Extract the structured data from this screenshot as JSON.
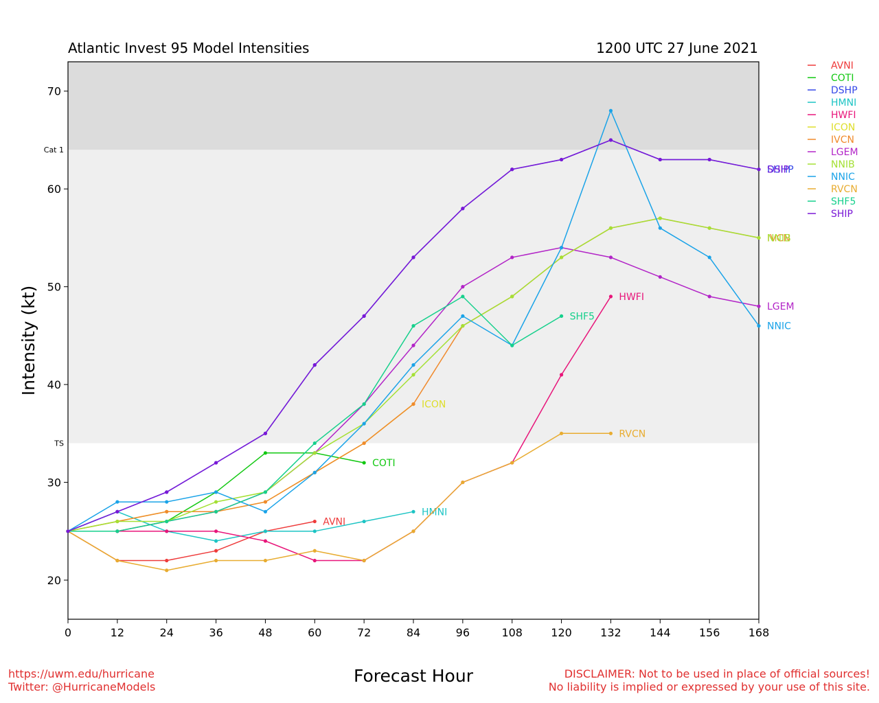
{
  "header": {
    "title": "Atlantic Invest 95 Model Intensities",
    "datetime": "1200 UTC 27 June 2021"
  },
  "footer": {
    "url": "https://uwm.edu/hurricane",
    "twitter": "Twitter: @HurricaneModels",
    "disclaimer_1": "DISCLAIMER: Not to be used in place of official sources!",
    "disclaimer_2": "No liability is implied or expressed by your use of this site."
  },
  "chart_data": {
    "type": "line",
    "title": "Atlantic Invest 95 Model Intensities",
    "subtitle": "1200 UTC 27 June 2021",
    "xlabel": "Forecast Hour",
    "ylabel": "Intensity (kt)",
    "xlim": [
      0,
      168
    ],
    "ylim": [
      16,
      73
    ],
    "x_ticks": [
      0,
      12,
      24,
      36,
      48,
      60,
      72,
      84,
      96,
      108,
      120,
      132,
      144,
      156,
      168
    ],
    "y_ticks": [
      20,
      30,
      40,
      50,
      60,
      70
    ],
    "bands": [
      {
        "label": "TS",
        "from": 34,
        "to": 64,
        "color": "#efefef"
      },
      {
        "label": "Cat 1",
        "from": 64,
        "to": 73,
        "color": "#dcdcdc"
      }
    ],
    "grid": false,
    "legend_position": "right",
    "series": [
      {
        "name": "AVNI",
        "color": "#ee3b3b",
        "x": [
          0,
          12,
          24,
          36,
          48,
          60
        ],
        "y": [
          25,
          22,
          22,
          23,
          25,
          26
        ],
        "end_label": "AVNI"
      },
      {
        "name": "COTI",
        "color": "#11c811",
        "x": [
          0,
          12,
          24,
          36,
          48,
          60,
          72
        ],
        "y": [
          25,
          25,
          26,
          29,
          33,
          33,
          32
        ],
        "end_label": "COTI"
      },
      {
        "name": "DSHP",
        "color": "#3548e8",
        "x": [
          0,
          12,
          24,
          36,
          48,
          60,
          72,
          84,
          96,
          108,
          120,
          132,
          144,
          156,
          168
        ],
        "y": [
          25,
          27,
          29,
          32,
          35,
          42,
          47,
          53,
          58,
          62,
          63,
          65,
          63,
          63,
          62
        ],
        "end_label": "DSHP"
      },
      {
        "name": "HMNI",
        "color": "#1cc4c4",
        "x": [
          0,
          12,
          24,
          36,
          48,
          60,
          72,
          84
        ],
        "y": [
          25,
          27,
          25,
          24,
          25,
          25,
          26,
          27
        ],
        "end_label": "HMNI"
      },
      {
        "name": "HWFI",
        "color": "#e8157a",
        "x": [
          0,
          12,
          24,
          36,
          48,
          60,
          72,
          84,
          96,
          108,
          120,
          132
        ],
        "y": [
          25,
          25,
          25,
          25,
          24,
          22,
          22,
          25,
          30,
          32,
          41,
          49
        ],
        "end_label": "HWFI"
      },
      {
        "name": "ICON",
        "color": "#dede2a",
        "x": [
          0,
          12,
          24,
          36,
          48,
          60,
          72,
          84
        ],
        "y": [
          25,
          26,
          27,
          27,
          28,
          31,
          34,
          38
        ],
        "end_label": "ICON"
      },
      {
        "name": "IVCN",
        "color": "#f08a2c",
        "x": [
          0,
          12,
          24,
          36,
          48,
          60,
          72,
          84,
          96,
          108,
          120,
          132,
          144,
          156,
          168
        ],
        "y": [
          25,
          26,
          27,
          27,
          28,
          31,
          34,
          38,
          46,
          49,
          53,
          56,
          57,
          56,
          55
        ],
        "end_label": "IVCN"
      },
      {
        "name": "LGEM",
        "color": "#b224c7",
        "x": [
          0,
          12,
          24,
          36,
          48,
          60,
          72,
          84,
          96,
          108,
          120,
          132,
          144,
          156,
          168
        ],
        "y": [
          25,
          25,
          26,
          27,
          29,
          33,
          38,
          44,
          50,
          53,
          54,
          53,
          51,
          49,
          48
        ],
        "end_label": "LGEM"
      },
      {
        "name": "NNIB",
        "color": "#a4e034",
        "x": [
          0,
          12,
          24,
          36,
          48,
          60,
          72,
          84,
          96,
          108,
          120,
          132,
          144,
          156,
          168
        ],
        "y": [
          25,
          26,
          26,
          28,
          29,
          33,
          36,
          41,
          46,
          49,
          53,
          56,
          57,
          56,
          55
        ],
        "end_label": "NNIB"
      },
      {
        "name": "NNIC",
        "color": "#1aa3e8",
        "x": [
          0,
          12,
          24,
          36,
          48,
          60,
          72,
          84,
          96,
          108,
          120,
          132,
          144,
          156,
          168
        ],
        "y": [
          25,
          28,
          28,
          29,
          27,
          31,
          36,
          42,
          47,
          44,
          54,
          68,
          56,
          53,
          46
        ],
        "end_label": "NNIC"
      },
      {
        "name": "RVCN",
        "color": "#e8ac30",
        "x": [
          0,
          12,
          24,
          36,
          48,
          60,
          72,
          84,
          96,
          108,
          120,
          132
        ],
        "y": [
          25,
          22,
          21,
          22,
          22,
          23,
          22,
          25,
          30,
          32,
          35,
          35
        ],
        "end_label": "RVCN"
      },
      {
        "name": "SHF5",
        "color": "#16d08c",
        "x": [
          0,
          12,
          24,
          36,
          48,
          60,
          72,
          84,
          96,
          108,
          120
        ],
        "y": [
          25,
          25,
          26,
          27,
          29,
          34,
          38,
          46,
          49,
          44,
          47
        ],
        "end_label": "SHF5"
      },
      {
        "name": "SHIP",
        "color": "#7a18d6",
        "x": [
          0,
          12,
          24,
          36,
          48,
          60,
          72,
          84,
          96,
          108,
          120,
          132,
          144,
          156,
          168
        ],
        "y": [
          25,
          27,
          29,
          32,
          35,
          42,
          47,
          53,
          58,
          62,
          63,
          65,
          63,
          63,
          62
        ],
        "end_label": "SHIP"
      }
    ]
  }
}
